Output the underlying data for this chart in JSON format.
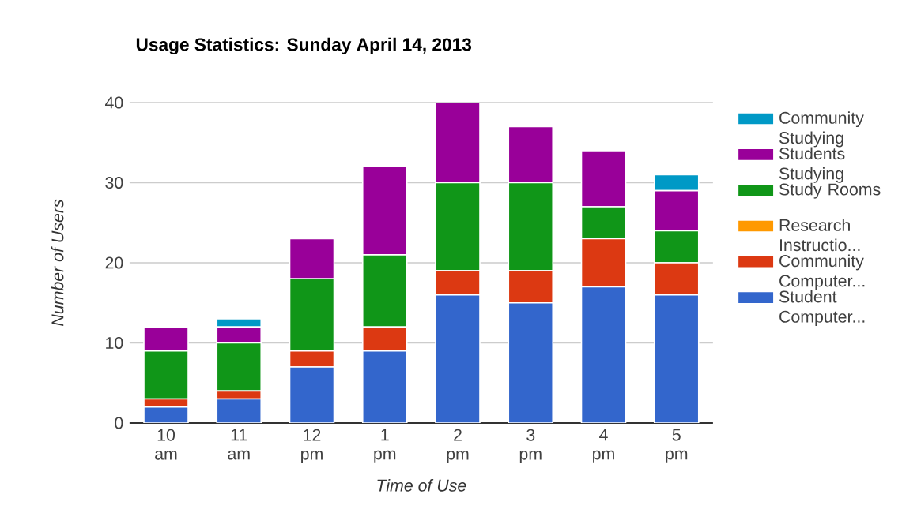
{
  "chart_data": {
    "type": "bar",
    "title": "Usage Statistics: Sunday April 14, 2013",
    "xlabel": "Time of Use",
    "ylabel": "Number of Users",
    "categories": [
      "10 am",
      "11 am",
      "12 pm",
      "1 pm",
      "2 pm",
      "3 pm",
      "4 pm",
      "5 pm"
    ],
    "stacked": true,
    "legend": "right",
    "grid": "y",
    "ylim": [
      0,
      40
    ],
    "yticks": [
      0,
      10,
      20,
      30,
      40
    ],
    "series": [
      {
        "name": "Student Computer...",
        "color": "#3366cc",
        "values": [
          2,
          3,
          7,
          9,
          16,
          15,
          17,
          16
        ]
      },
      {
        "name": "Community Computer...",
        "color": "#dc3912",
        "values": [
          1,
          1,
          2,
          3,
          3,
          4,
          6,
          4
        ]
      },
      {
        "name": "Research Instructio...",
        "color": "#ff9900",
        "values": [
          0,
          0,
          0,
          0,
          0,
          0,
          0,
          0
        ]
      },
      {
        "name": "Study Rooms",
        "color": "#109618",
        "values": [
          6,
          6,
          9,
          9,
          11,
          11,
          4,
          4
        ]
      },
      {
        "name": "Students Studying",
        "color": "#990099",
        "values": [
          3,
          2,
          5,
          11,
          10,
          7,
          7,
          5
        ]
      },
      {
        "name": "Community Studying",
        "color": "#0099c6",
        "values": [
          0,
          1,
          0,
          0,
          0,
          0,
          0,
          2
        ]
      }
    ]
  }
}
